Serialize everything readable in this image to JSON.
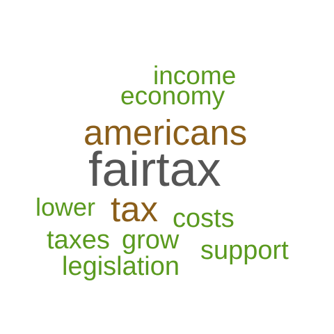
{
  "words": {
    "income": "income",
    "economy": "economy",
    "americans": "americans",
    "fairtax": "fairtax",
    "lower": "lower",
    "tax": "tax",
    "costs": "costs",
    "taxes": "taxes",
    "grow": "grow",
    "support": "support",
    "legislation": "legislation"
  },
  "colors": {
    "green": "#5a9a1f",
    "brown": "#8b5e1a",
    "gray": "#555555",
    "background": "#ffffff"
  }
}
